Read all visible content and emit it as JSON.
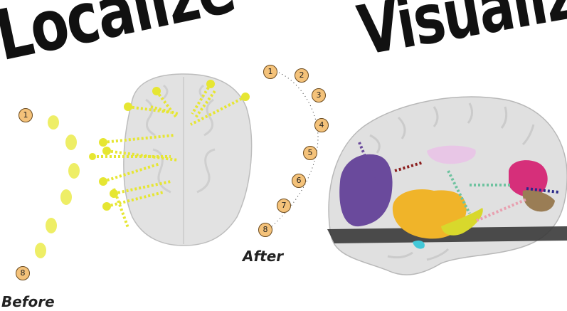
{
  "titles": {
    "left": "Localize",
    "right": "Visualize"
  },
  "captions": {
    "before": "Before",
    "after": "After"
  },
  "before_labels": [
    "1",
    "8"
  ],
  "after_labels": [
    "1",
    "2",
    "3",
    "4",
    "5",
    "6",
    "7",
    "8"
  ],
  "colors": {
    "electrode": "#e6e632",
    "badge_fill": "#f4c27a",
    "brain": "#dcdcdc",
    "purple_region": "#6a4a9c",
    "orange_region": "#f0b429",
    "magenta_region": "#d62f7a",
    "pink_region": "#e8c6e6",
    "olive_region": "#9a7d55",
    "cyan_region": "#42c8d8"
  }
}
